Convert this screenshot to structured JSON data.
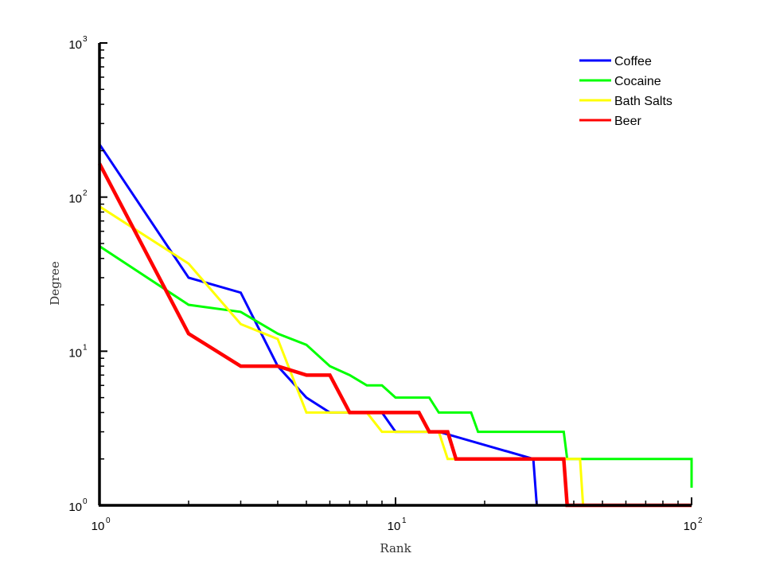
{
  "chart_data": {
    "type": "line",
    "xscale": "log",
    "yscale": "log",
    "xlim": [
      1,
      100
    ],
    "ylim": [
      1,
      1000
    ],
    "xlabel": "Rank",
    "ylabel": "Degree",
    "xticks": [
      {
        "base": "10",
        "exp": "0",
        "value": 1
      },
      {
        "base": "10",
        "exp": "1",
        "value": 10
      },
      {
        "base": "10",
        "exp": "2",
        "value": 100
      }
    ],
    "yticks": [
      {
        "base": "10",
        "exp": "0",
        "value": 1
      },
      {
        "base": "10",
        "exp": "1",
        "value": 10
      },
      {
        "base": "10",
        "exp": "2",
        "value": 100
      },
      {
        "base": "10",
        "exp": "3",
        "value": 1000
      }
    ],
    "legend_position": "top-right",
    "grid": false,
    "series": [
      {
        "name": "Coffee",
        "color": "#0000ff",
        "points": [
          [
            1,
            220
          ],
          [
            2,
            30
          ],
          [
            3,
            24
          ],
          [
            4,
            8
          ],
          [
            5,
            5
          ],
          [
            6,
            4
          ],
          [
            9,
            4
          ],
          [
            10,
            3
          ],
          [
            13,
            3
          ],
          [
            14,
            3
          ],
          [
            29.2,
            2
          ],
          [
            30,
            1
          ],
          [
            100,
            1
          ]
        ]
      },
      {
        "name": "Cocaine",
        "color": "#00ff00",
        "points": [
          [
            1,
            48
          ],
          [
            2,
            20
          ],
          [
            3,
            18
          ],
          [
            4,
            13
          ],
          [
            5,
            11
          ],
          [
            6,
            8
          ],
          [
            7,
            7
          ],
          [
            8,
            6
          ],
          [
            9,
            6
          ],
          [
            10,
            5
          ],
          [
            12,
            5
          ],
          [
            13,
            5
          ],
          [
            14,
            4
          ],
          [
            18,
            4
          ],
          [
            19,
            3
          ],
          [
            37,
            3
          ],
          [
            38,
            2
          ],
          [
            100,
            2
          ],
          [
            100,
            1.3
          ]
        ]
      },
      {
        "name": "Bath Salts",
        "color": "#ffff00",
        "points": [
          [
            1,
            87
          ],
          [
            2,
            37
          ],
          [
            3,
            15
          ],
          [
            4,
            12
          ],
          [
            5,
            4
          ],
          [
            7,
            4
          ],
          [
            8,
            4
          ],
          [
            9,
            3
          ],
          [
            13,
            3
          ],
          [
            14,
            3
          ],
          [
            15,
            2
          ],
          [
            42,
            2
          ],
          [
            43,
            1
          ],
          [
            100,
            1
          ]
        ]
      },
      {
        "name": "Beer",
        "color": "#ff0000",
        "points": [
          [
            1,
            165
          ],
          [
            2,
            13
          ],
          [
            3,
            8
          ],
          [
            4,
            8
          ],
          [
            5,
            7
          ],
          [
            6,
            7
          ],
          [
            7,
            4
          ],
          [
            12,
            4
          ],
          [
            13,
            3
          ],
          [
            15,
            3
          ],
          [
            16,
            2
          ],
          [
            37,
            2
          ],
          [
            38,
            1
          ],
          [
            100,
            1
          ]
        ]
      }
    ]
  }
}
